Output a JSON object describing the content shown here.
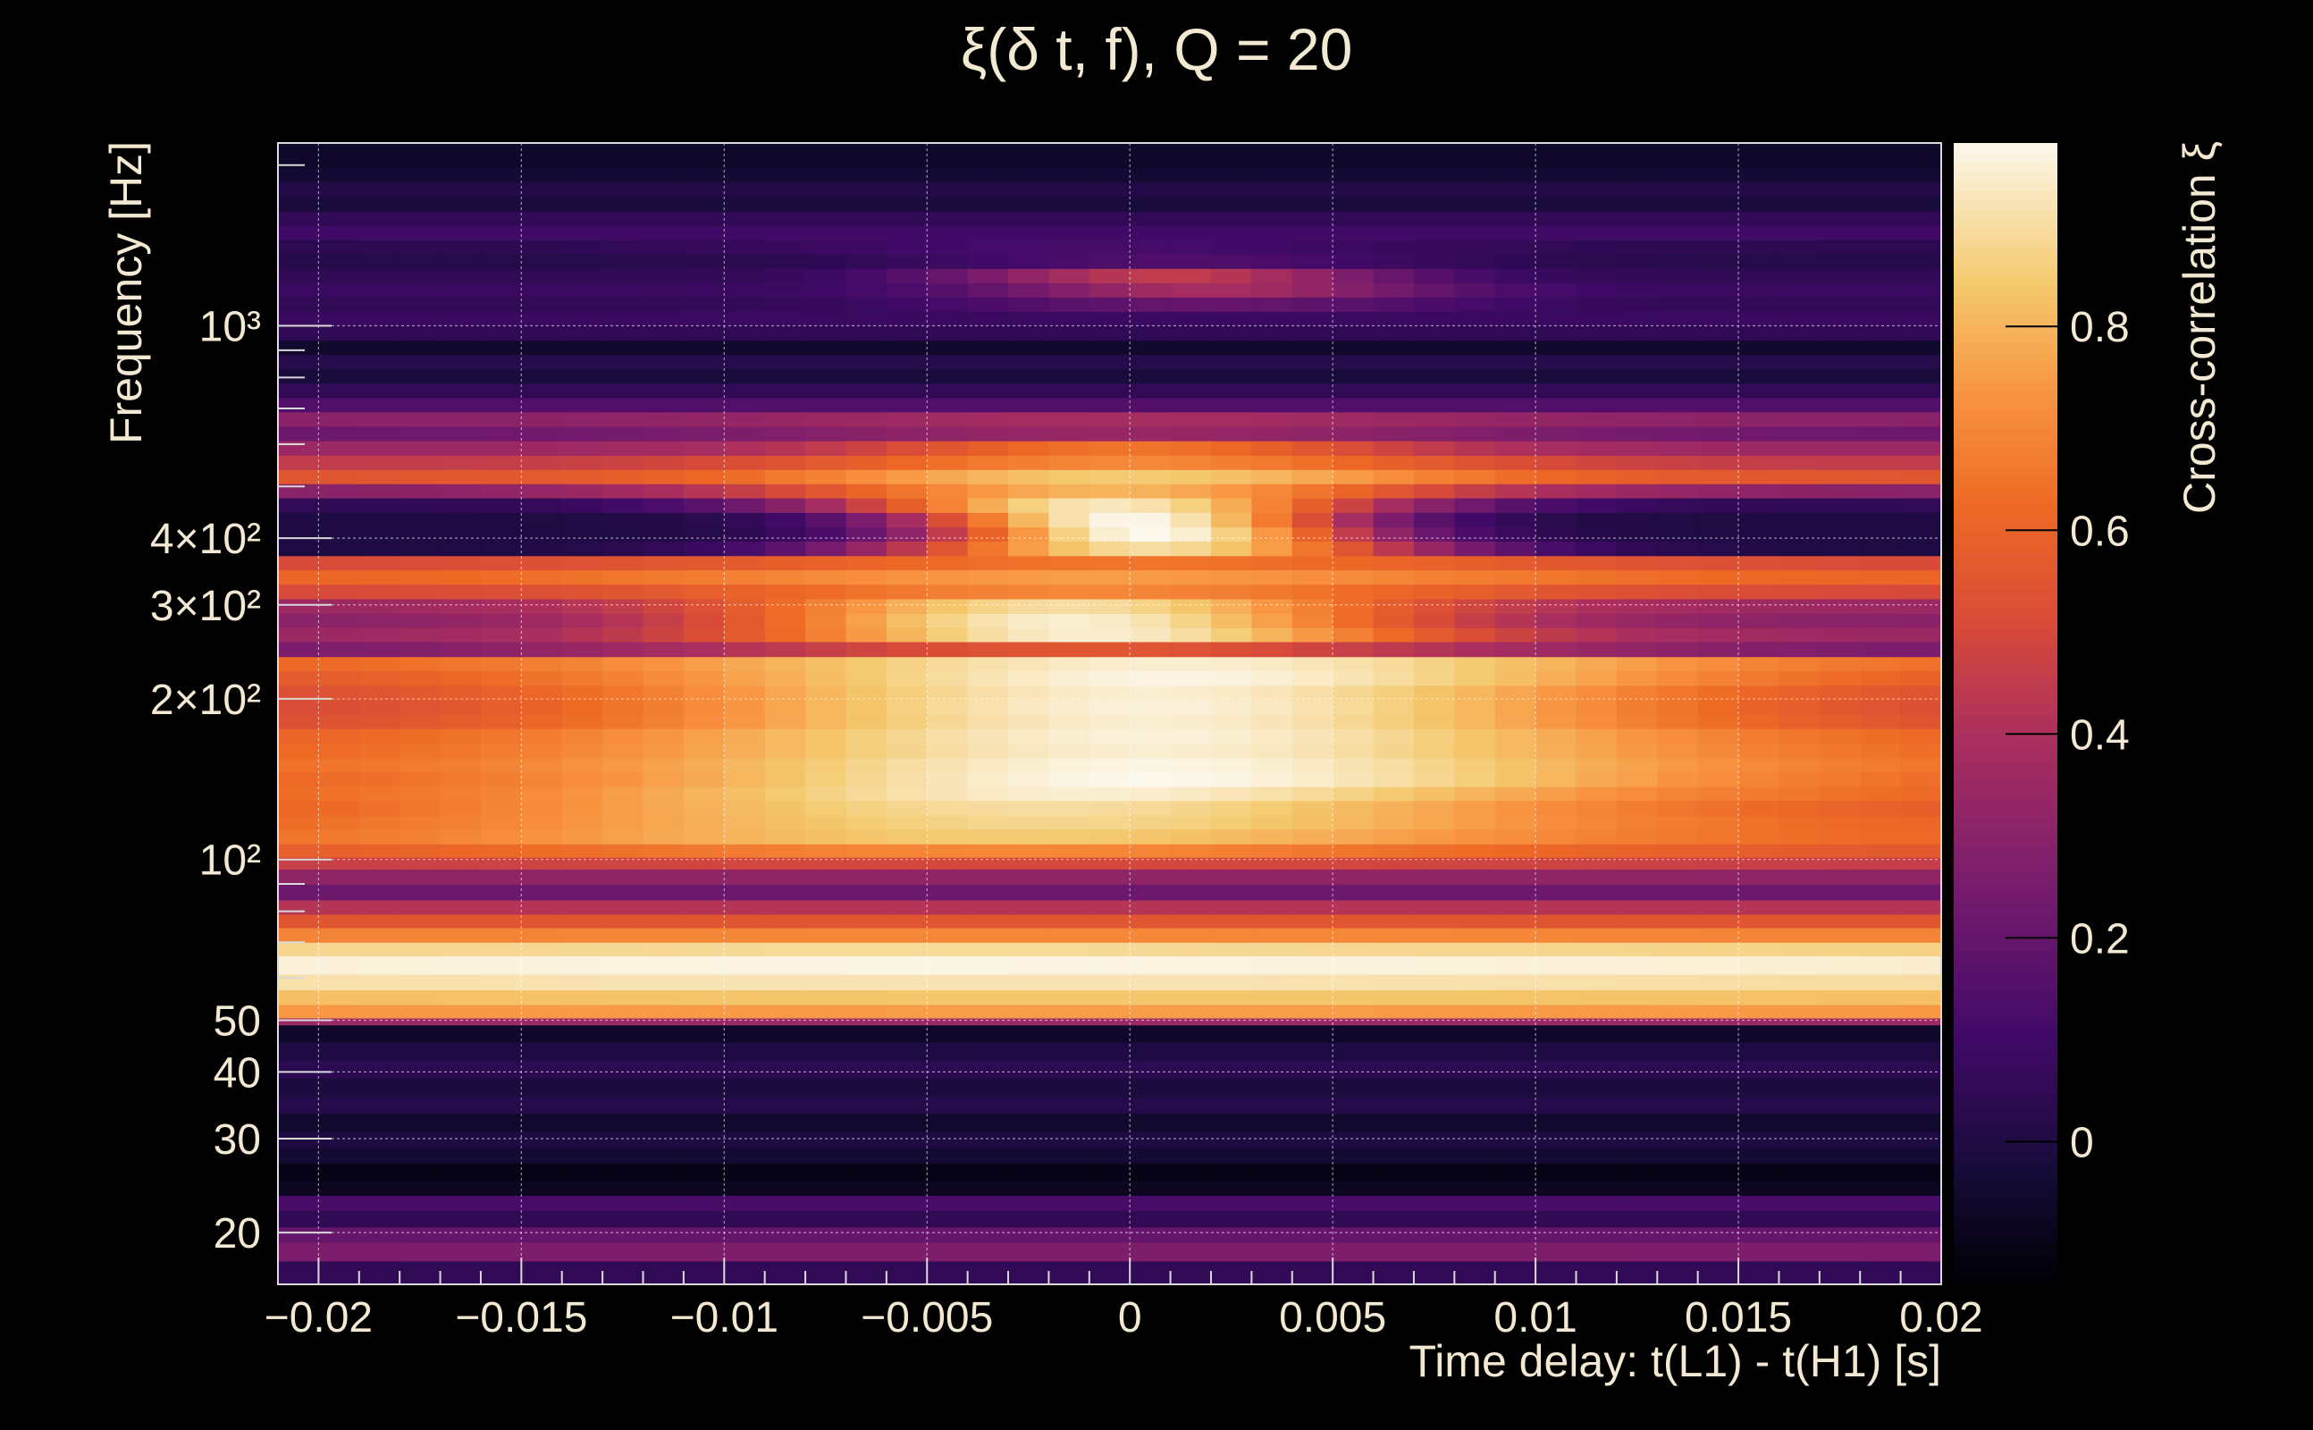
{
  "chart_data": {
    "type": "heatmap",
    "title": "ξ(δ t, f), Q = 20",
    "xlabel": "Time delay: t(L1) - t(H1) [s]",
    "ylabel": "Frequency [Hz]",
    "colorbar_label": "Cross-correlation ξ",
    "colormap": "inferno",
    "grid": true,
    "log_y": true,
    "xlim": [
      -0.021,
      0.02
    ],
    "ylim": [
      16,
      2200
    ],
    "zlim": [
      -0.14,
      0.98
    ],
    "x_ticks": [
      {
        "value": -0.02,
        "label": "−0.02"
      },
      {
        "value": -0.015,
        "label": "−0.015"
      },
      {
        "value": -0.01,
        "label": "−0.01"
      },
      {
        "value": -0.005,
        "label": "−0.005"
      },
      {
        "value": 0,
        "label": "0"
      },
      {
        "value": 0.005,
        "label": "0.005"
      },
      {
        "value": 0.01,
        "label": "0.01"
      },
      {
        "value": 0.015,
        "label": "0.015"
      },
      {
        "value": 0.02,
        "label": "0.02"
      }
    ],
    "y_ticks": [
      {
        "value": 20,
        "label": "20"
      },
      {
        "value": 30,
        "label": "30"
      },
      {
        "value": 40,
        "label": "40"
      },
      {
        "value": 50,
        "label": "50"
      },
      {
        "value": 100,
        "label": "10²"
      },
      {
        "value": 200,
        "label": "2×10²"
      },
      {
        "value": 300,
        "label": "3×10²"
      },
      {
        "value": 400,
        "label": "4×10²"
      },
      {
        "value": 1000,
        "label": "10³"
      }
    ],
    "colorbar_ticks": [
      {
        "value": 0,
        "label": "0"
      },
      {
        "value": 0.2,
        "label": "0.2"
      },
      {
        "value": 0.4,
        "label": "0.4"
      },
      {
        "value": 0.6,
        "label": "0.6"
      },
      {
        "value": 0.8,
        "label": "0.8"
      }
    ],
    "x_bin_width": 0.001,
    "rows": [
      {
        "f_lo": 16.0,
        "f_hi": 17.7,
        "base": 0.05,
        "amp": 0.0,
        "width": 0.02,
        "center": 0
      },
      {
        "f_lo": 17.7,
        "f_hi": 19.2,
        "base": 0.25,
        "amp": 0.02,
        "width": 0.02,
        "center": 0
      },
      {
        "f_lo": 19.2,
        "f_hi": 20.5,
        "base": 0.2,
        "amp": 0.0,
        "width": 0.02,
        "center": 0
      },
      {
        "f_lo": 20.5,
        "f_hi": 22.0,
        "base": 0.05,
        "amp": 0.0,
        "width": 0.02,
        "center": 0
      },
      {
        "f_lo": 22.0,
        "f_hi": 23.5,
        "base": 0.12,
        "amp": 0.0,
        "width": 0.02,
        "center": 0
      },
      {
        "f_lo": 23.5,
        "f_hi": 25.0,
        "base": -0.08,
        "amp": 0.0,
        "width": 0.02,
        "center": 0
      },
      {
        "f_lo": 25.0,
        "f_hi": 27.0,
        "base": -0.1,
        "amp": 0.0,
        "width": 0.02,
        "center": 0
      },
      {
        "f_lo": 27.0,
        "f_hi": 29.0,
        "base": -0.04,
        "amp": 0.0,
        "width": 0.02,
        "center": 0
      },
      {
        "f_lo": 29.0,
        "f_hi": 31.0,
        "base": 0.0,
        "amp": 0.0,
        "width": 0.02,
        "center": 0
      },
      {
        "f_lo": 31.0,
        "f_hi": 33.5,
        "base": -0.05,
        "amp": 0.0,
        "width": 0.02,
        "center": 0
      },
      {
        "f_lo": 33.5,
        "f_hi": 36.0,
        "base": 0.02,
        "amp": 0.0,
        "width": 0.02,
        "center": 0
      },
      {
        "f_lo": 36.0,
        "f_hi": 39.0,
        "base": -0.01,
        "amp": 0.0,
        "width": 0.02,
        "center": 0
      },
      {
        "f_lo": 39.0,
        "f_hi": 42.0,
        "base": 0.04,
        "amp": 0.0,
        "width": 0.02,
        "center": 0
      },
      {
        "f_lo": 42.0,
        "f_hi": 45.5,
        "base": 0.0,
        "amp": 0.0,
        "width": 0.02,
        "center": 0
      },
      {
        "f_lo": 45.5,
        "f_hi": 49.0,
        "base": -0.06,
        "amp": 0.0,
        "width": 0.02,
        "center": 0
      },
      {
        "f_lo": 49.0,
        "f_hi": 50.5,
        "base": 0.35,
        "amp": 0.0,
        "width": 0.02,
        "center": 0
      },
      {
        "f_lo": 50.5,
        "f_hi": 53.5,
        "base": 0.73,
        "amp": 0.02,
        "width": 0.02,
        "center": 0
      },
      {
        "f_lo": 53.5,
        "f_hi": 57.0,
        "base": 0.8,
        "amp": 0.04,
        "width": 0.02,
        "center": 0
      },
      {
        "f_lo": 57.0,
        "f_hi": 61.0,
        "base": 0.88,
        "amp": 0.04,
        "width": 0.02,
        "center": -0.005
      },
      {
        "f_lo": 61.0,
        "f_hi": 66.0,
        "base": 0.93,
        "amp": 0.04,
        "width": 0.02,
        "center": -0.005
      },
      {
        "f_lo": 66.0,
        "f_hi": 70.0,
        "base": 0.85,
        "amp": 0.04,
        "width": 0.02,
        "center": -0.005
      },
      {
        "f_lo": 70.0,
        "f_hi": 74.5,
        "base": 0.68,
        "amp": 0.02,
        "width": 0.02,
        "center": 0
      },
      {
        "f_lo": 74.5,
        "f_hi": 79.0,
        "base": 0.55,
        "amp": 0.0,
        "width": 0.02,
        "center": 0
      },
      {
        "f_lo": 79.0,
        "f_hi": 84.0,
        "base": 0.42,
        "amp": 0.0,
        "width": 0.02,
        "center": 0
      },
      {
        "f_lo": 84.0,
        "f_hi": 90.0,
        "base": 0.22,
        "amp": 0.0,
        "width": 0.02,
        "center": 0
      },
      {
        "f_lo": 90.0,
        "f_hi": 96.0,
        "base": 0.32,
        "amp": 0.0,
        "width": 0.02,
        "center": 0
      },
      {
        "f_lo": 96.0,
        "f_hi": 101.0,
        "base": 0.45,
        "amp": 0.05,
        "width": 0.012,
        "center": -0.002
      },
      {
        "f_lo": 101.0,
        "f_hi": 107.0,
        "base": 0.55,
        "amp": 0.15,
        "width": 0.01,
        "center": -0.003
      },
      {
        "f_lo": 107.0,
        "f_hi": 114.0,
        "base": 0.6,
        "amp": 0.25,
        "width": 0.01,
        "center": -0.003
      },
      {
        "f_lo": 114.0,
        "f_hi": 121.0,
        "base": 0.58,
        "amp": 0.3,
        "width": 0.01,
        "center": -0.002
      },
      {
        "f_lo": 121.0,
        "f_hi": 129.0,
        "base": 0.55,
        "amp": 0.35,
        "width": 0.01,
        "center": -0.002
      },
      {
        "f_lo": 129.0,
        "f_hi": 137.0,
        "base": 0.6,
        "amp": 0.35,
        "width": 0.009,
        "center": -0.001
      },
      {
        "f_lo": 137.0,
        "f_hi": 146.0,
        "base": 0.6,
        "amp": 0.38,
        "width": 0.009,
        "center": 0.0005
      },
      {
        "f_lo": 146.0,
        "f_hi": 155.0,
        "base": 0.62,
        "amp": 0.35,
        "width": 0.009,
        "center": 0.0005
      },
      {
        "f_lo": 155.0,
        "f_hi": 165.0,
        "base": 0.6,
        "amp": 0.35,
        "width": 0.009,
        "center": 0.0005
      },
      {
        "f_lo": 165.0,
        "f_hi": 176.0,
        "base": 0.58,
        "amp": 0.38,
        "width": 0.009,
        "center": 0.0005
      },
      {
        "f_lo": 176.0,
        "f_hi": 187.0,
        "base": 0.5,
        "amp": 0.45,
        "width": 0.009,
        "center": 0.0005
      },
      {
        "f_lo": 187.0,
        "f_hi": 199.0,
        "base": 0.48,
        "amp": 0.48,
        "width": 0.009,
        "center": 0.0005
      },
      {
        "f_lo": 199.0,
        "f_hi": 212.0,
        "base": 0.5,
        "amp": 0.45,
        "width": 0.009,
        "center": 0.0005
      },
      {
        "f_lo": 212.0,
        "f_hi": 226.0,
        "base": 0.55,
        "amp": 0.42,
        "width": 0.009,
        "center": 0.001
      },
      {
        "f_lo": 226.0,
        "f_hi": 240.0,
        "base": 0.6,
        "amp": 0.35,
        "width": 0.009,
        "center": 0.001
      },
      {
        "f_lo": 240.0,
        "f_hi": 256.0,
        "base": 0.25,
        "amp": 0.3,
        "width": 0.008,
        "center": -0.001
      },
      {
        "f_lo": 256.0,
        "f_hi": 272.0,
        "base": 0.35,
        "amp": 0.6,
        "width": 0.006,
        "center": -0.001
      },
      {
        "f_lo": 272.0,
        "f_hi": 289.0,
        "base": 0.3,
        "amp": 0.65,
        "width": 0.006,
        "center": -0.0015
      },
      {
        "f_lo": 289.0,
        "f_hi": 308.0,
        "base": 0.35,
        "amp": 0.55,
        "width": 0.006,
        "center": -0.0015
      },
      {
        "f_lo": 308.0,
        "f_hi": 328.0,
        "base": 0.5,
        "amp": 0.2,
        "width": 0.007,
        "center": -0.001
      },
      {
        "f_lo": 328.0,
        "f_hi": 349.0,
        "base": 0.6,
        "amp": 0.15,
        "width": 0.008,
        "center": -0.001
      },
      {
        "f_lo": 349.0,
        "f_hi": 371.0,
        "base": 0.5,
        "amp": 0.15,
        "width": 0.008,
        "center": 0
      },
      {
        "f_lo": 371.0,
        "f_hi": 395.0,
        "base": 0.0,
        "amp": 0.9,
        "width": 0.005,
        "center": 0.0005
      },
      {
        "f_lo": 395.0,
        "f_hi": 420.0,
        "base": 0.0,
        "amp": 0.98,
        "width": 0.004,
        "center": 0.0005
      },
      {
        "f_lo": 420.0,
        "f_hi": 447.0,
        "base": 0.0,
        "amp": 0.98,
        "width": 0.004,
        "center": 0
      },
      {
        "f_lo": 447.0,
        "f_hi": 476.0,
        "base": 0.05,
        "amp": 0.88,
        "width": 0.005,
        "center": -0.0005
      },
      {
        "f_lo": 476.0,
        "f_hi": 506.0,
        "base": 0.3,
        "amp": 0.5,
        "width": 0.006,
        "center": -0.0005
      },
      {
        "f_lo": 506.0,
        "f_hi": 538.0,
        "base": 0.55,
        "amp": 0.3,
        "width": 0.006,
        "center": 0
      },
      {
        "f_lo": 538.0,
        "f_hi": 572.0,
        "base": 0.45,
        "amp": 0.25,
        "width": 0.006,
        "center": 0
      },
      {
        "f_lo": 572.0,
        "f_hi": 609.0,
        "base": 0.35,
        "amp": 0.3,
        "width": 0.005,
        "center": 0
      },
      {
        "f_lo": 609.0,
        "f_hi": 648.0,
        "base": 0.22,
        "amp": 0.12,
        "width": 0.007,
        "center": 0
      },
      {
        "f_lo": 648.0,
        "f_hi": 690.0,
        "base": 0.3,
        "amp": 0.08,
        "width": 0.007,
        "center": 0
      },
      {
        "f_lo": 690.0,
        "f_hi": 734.0,
        "base": 0.15,
        "amp": 0.0,
        "width": 0.01,
        "center": 0
      },
      {
        "f_lo": 734.0,
        "f_hi": 781.0,
        "base": 0.05,
        "amp": 0.0,
        "width": 0.01,
        "center": 0
      },
      {
        "f_lo": 781.0,
        "f_hi": 831.0,
        "base": -0.02,
        "amp": 0.0,
        "width": 0.01,
        "center": 0
      },
      {
        "f_lo": 831.0,
        "f_hi": 884.0,
        "base": 0.02,
        "amp": 0.0,
        "width": 0.01,
        "center": 0
      },
      {
        "f_lo": 884.0,
        "f_hi": 940.0,
        "base": -0.05,
        "amp": 0.0,
        "width": 0.01,
        "center": 0
      },
      {
        "f_lo": 940.0,
        "f_hi": 1000.0,
        "base": 0.05,
        "amp": 0.0,
        "width": 0.01,
        "center": 0
      },
      {
        "f_lo": 1000.0,
        "f_hi": 1064.0,
        "base": 0.08,
        "amp": 0.0,
        "width": 0.01,
        "center": 0
      },
      {
        "f_lo": 1064.0,
        "f_hi": 1132.0,
        "base": 0.05,
        "amp": 0.15,
        "width": 0.005,
        "center": 0.002
      },
      {
        "f_lo": 1132.0,
        "f_hi": 1204.0,
        "base": 0.08,
        "amp": 0.3,
        "width": 0.004,
        "center": 0.002
      },
      {
        "f_lo": 1204.0,
        "f_hi": 1281.0,
        "base": 0.05,
        "amp": 0.4,
        "width": 0.004,
        "center": 0.001
      },
      {
        "f_lo": 1281.0,
        "f_hi": 1363.0,
        "base": 0.02,
        "amp": 0.12,
        "width": 0.005,
        "center": 0.001
      },
      {
        "f_lo": 1363.0,
        "f_hi": 1450.0,
        "base": 0.04,
        "amp": 0.08,
        "width": 0.006,
        "center": -0.001
      },
      {
        "f_lo": 1450.0,
        "f_hi": 1543.0,
        "base": 0.1,
        "amp": 0.0,
        "width": 0.01,
        "center": 0
      },
      {
        "f_lo": 1543.0,
        "f_hi": 1641.0,
        "base": 0.05,
        "amp": 0.0,
        "width": 0.01,
        "center": 0
      },
      {
        "f_lo": 1641.0,
        "f_hi": 1746.0,
        "base": -0.02,
        "amp": 0.0,
        "width": 0.01,
        "center": 0
      },
      {
        "f_lo": 1746.0,
        "f_hi": 1858.0,
        "base": 0.01,
        "amp": 0.0,
        "width": 0.01,
        "center": 0
      },
      {
        "f_lo": 1858.0,
        "f_hi": 1977.0,
        "base": -0.04,
        "amp": 0.0,
        "width": 0.01,
        "center": 0
      },
      {
        "f_lo": 1977.0,
        "f_hi": 2200.0,
        "base": -0.06,
        "amp": 0.0,
        "width": 0.01,
        "center": 0
      }
    ]
  }
}
